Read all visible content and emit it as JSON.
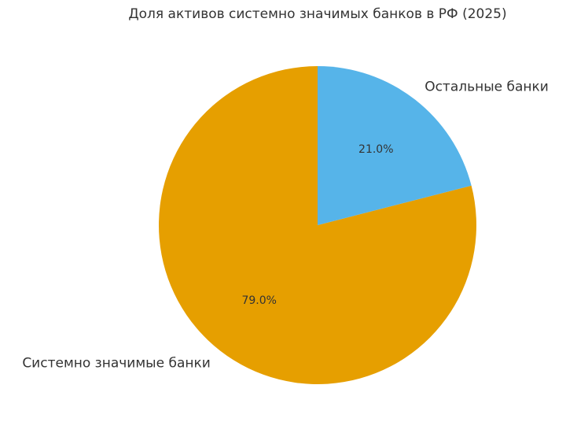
{
  "chart_data": {
    "type": "pie",
    "title": "Доля активов системно значимых банков в РФ (2025)",
    "categories": [
      "Системно значимые банки",
      "Остальные банки"
    ],
    "values": [
      79.0,
      21.0
    ],
    "value_labels": [
      "79.0%",
      "21.0%"
    ],
    "colors": [
      "#E69F00",
      "#56B4E9"
    ]
  }
}
